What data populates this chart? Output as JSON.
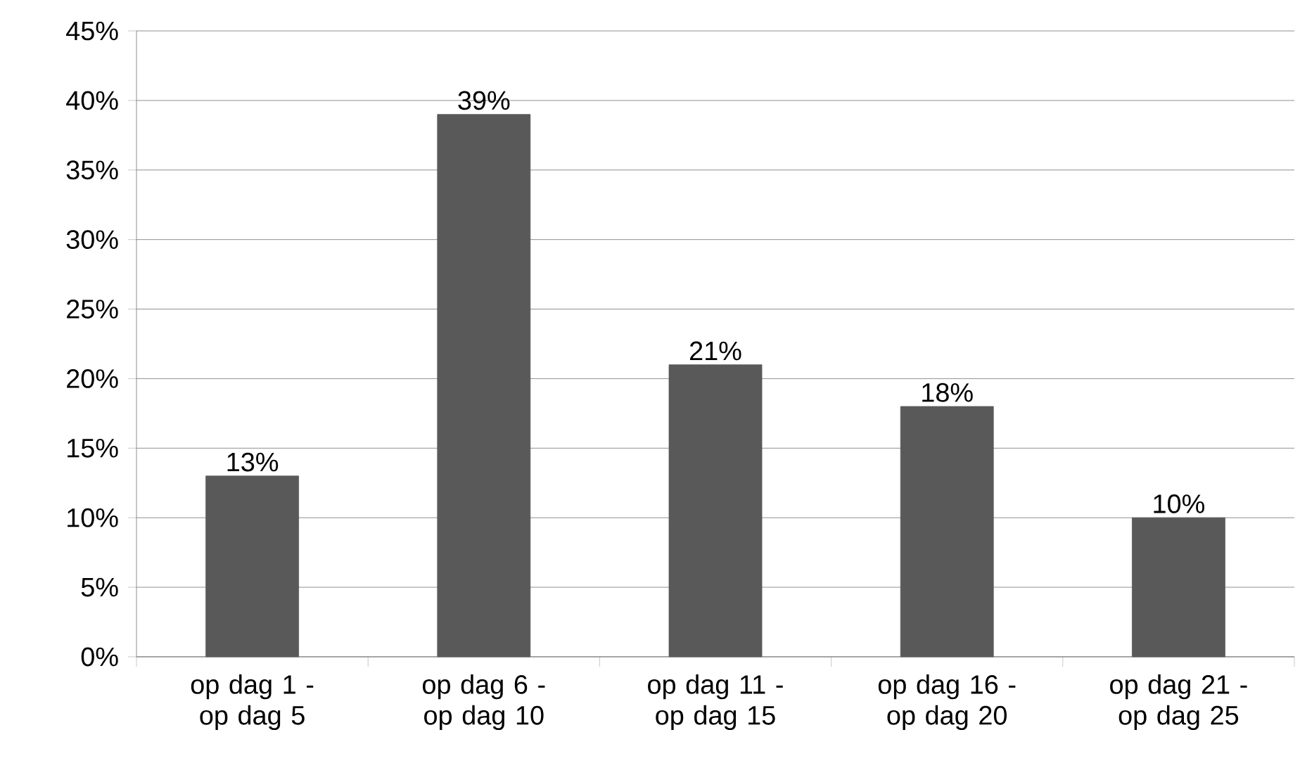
{
  "chart_data": {
    "type": "bar",
    "categories": [
      "op dag 1 - op dag 5",
      "op dag 6 - op dag 10",
      "op dag 11 - op dag 15",
      "op dag 16 - op dag 20",
      "op dag 21 - op dag 25"
    ],
    "values": [
      13,
      39,
      21,
      18,
      10
    ],
    "value_labels": [
      "13%",
      "39%",
      "21%",
      "18%",
      "10%"
    ],
    "color": "#595959",
    "ylim": [
      0,
      45
    ],
    "yticks": [
      {
        "value": 0,
        "label": "0%"
      },
      {
        "value": 5,
        "label": "5%"
      },
      {
        "value": 10,
        "label": "10%"
      },
      {
        "value": 15,
        "label": "15%"
      },
      {
        "value": 20,
        "label": "20%"
      },
      {
        "value": 25,
        "label": "25%"
      },
      {
        "value": 30,
        "label": "30%"
      },
      {
        "value": 35,
        "label": "35%"
      },
      {
        "value": 40,
        "label": "40%"
      },
      {
        "value": 45,
        "label": "45%"
      }
    ],
    "grid": "y"
  }
}
